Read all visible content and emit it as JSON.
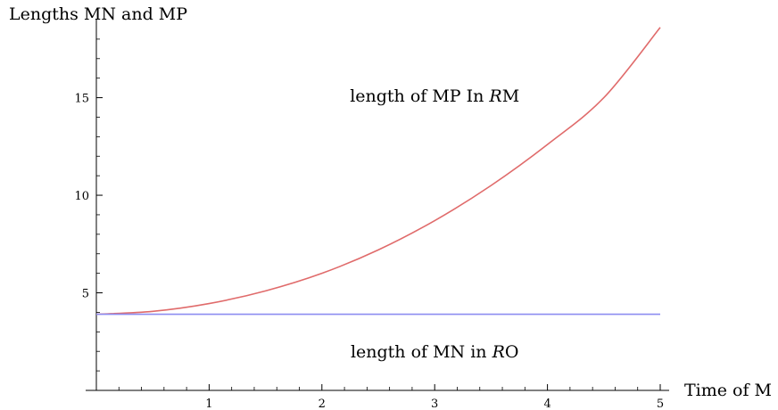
{
  "chart_data": {
    "type": "line",
    "title": "",
    "ylabel": "Lengths MN and MP",
    "xlabel": "Time of M",
    "xlim": [
      0,
      5
    ],
    "ylim": [
      0,
      19
    ],
    "x_ticks": [
      "1",
      "2",
      "3",
      "4",
      "5"
    ],
    "y_ticks": [
      "5",
      "10",
      "15"
    ],
    "grid": false,
    "series": [
      {
        "color": "#e06b6b",
        "x": [
          0,
          0.5,
          1,
          1.5,
          2,
          2.5,
          3,
          3.5,
          4,
          4.5,
          5
        ],
        "values": [
          3.9,
          4.05,
          4.45,
          5.1,
          6.0,
          7.2,
          8.7,
          10.5,
          12.6,
          15.0,
          18.6
        ]
      },
      {
        "color": "#8c8cf0",
        "x": [
          0,
          5
        ],
        "values": [
          3.9,
          3.9
        ]
      }
    ],
    "annotations": [
      {
        "text_main": "length of MP In ",
        "text_script": "R",
        "text_tail": "M",
        "x": 3.0,
        "y": 14.8
      },
      {
        "text_main": "length of MN in ",
        "text_script": "R",
        "text_tail": "O",
        "x": 3.0,
        "y": 1.7
      }
    ]
  }
}
